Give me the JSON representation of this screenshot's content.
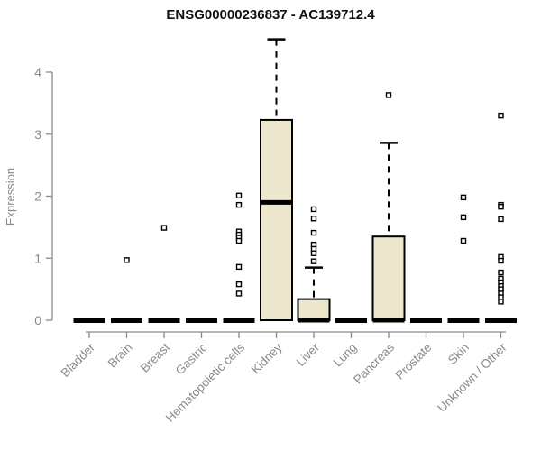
{
  "chart_data": {
    "type": "boxplot",
    "title": "ENSG00000236837 - AC139712.4",
    "xlabel": "",
    "ylabel": "Expression",
    "ylim": [
      0,
      4.6
    ],
    "yticks": [
      0,
      1,
      2,
      3,
      4
    ],
    "grid": false,
    "legend": false,
    "colors": {
      "box_fill": "#EDE7CE",
      "box_stroke": "#000000",
      "median": "#000000",
      "whisker": "#000000",
      "outlier_fill": "#ffffff",
      "outlier_stroke": "#000000",
      "axis": "#8a8a8a",
      "title": "#111111"
    },
    "categories": [
      "Bladder",
      "Brain",
      "Breast",
      "Gastric",
      "Hematopoietic cells",
      "Kidney",
      "Liver",
      "Lung",
      "Pancreas",
      "Prostate",
      "Skin",
      "Unknown / Other"
    ],
    "boxes": [
      {
        "category": "Bladder",
        "low": 0,
        "q1": 0,
        "median": 0,
        "q3": 0,
        "high": 0,
        "outliers": []
      },
      {
        "category": "Brain",
        "low": 0,
        "q1": 0,
        "median": 0,
        "q3": 0,
        "high": 0,
        "outliers": [
          0.97
        ]
      },
      {
        "category": "Breast",
        "low": 0,
        "q1": 0,
        "median": 0,
        "q3": 0,
        "high": 0,
        "outliers": [
          1.49
        ]
      },
      {
        "category": "Gastric",
        "low": 0,
        "q1": 0,
        "median": 0,
        "q3": 0,
        "high": 0,
        "outliers": []
      },
      {
        "category": "Hematopoietic cells",
        "low": 0,
        "q1": 0,
        "median": 0,
        "q3": 0,
        "high": 0,
        "outliers": [
          2.01,
          1.86,
          1.43,
          1.38,
          1.33,
          1.28,
          0.86,
          0.58,
          0.43
        ]
      },
      {
        "category": "Kidney",
        "low": 0,
        "q1": 0,
        "median": 1.9,
        "q3": 3.23,
        "high": 4.53,
        "outliers": []
      },
      {
        "category": "Liver",
        "low": 0,
        "q1": 0,
        "median": 0,
        "q3": 0.34,
        "high": 0.85,
        "outliers": [
          1.79,
          1.64,
          1.41,
          1.22,
          1.15,
          1.08,
          0.95
        ]
      },
      {
        "category": "Lung",
        "low": 0,
        "q1": 0,
        "median": 0,
        "q3": 0,
        "high": 0,
        "outliers": []
      },
      {
        "category": "Pancreas",
        "low": 0,
        "q1": 0,
        "median": 0,
        "q3": 1.35,
        "high": 2.86,
        "outliers": [
          3.63
        ]
      },
      {
        "category": "Prostate",
        "low": 0,
        "q1": 0,
        "median": 0,
        "q3": 0,
        "high": 0,
        "outliers": []
      },
      {
        "category": "Skin",
        "low": 0,
        "q1": 0,
        "median": 0,
        "q3": 0,
        "high": 0,
        "outliers": [
          1.98,
          1.66,
          1.28
        ]
      },
      {
        "category": "Unknown / Other",
        "low": 0,
        "q1": 0,
        "median": 0,
        "q3": 0,
        "high": 0,
        "outliers": [
          3.3,
          1.86,
          1.83,
          1.63,
          1.02,
          0.96,
          0.77,
          0.67,
          0.61,
          0.55,
          0.5,
          0.43,
          0.37,
          0.3
        ]
      }
    ]
  }
}
